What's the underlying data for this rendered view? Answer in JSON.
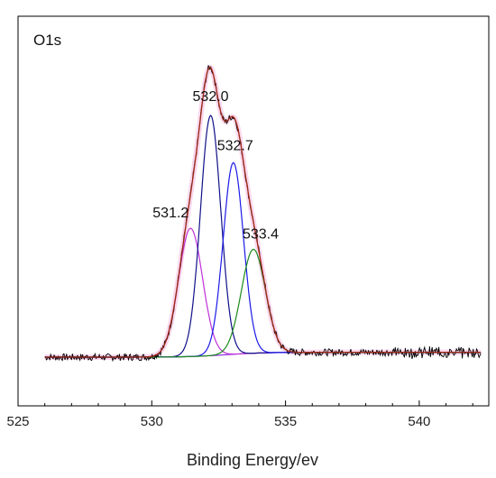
{
  "chart_data": {
    "type": "line",
    "panel_label": "O1s",
    "xlabel": "Binding Energy/ev",
    "ylabel": "",
    "xlim": [
      525,
      542.6
    ],
    "ylim": [
      -0.15,
      1.05
    ],
    "xticks": [
      525,
      530,
      535,
      540
    ],
    "grid": false,
    "series": [
      {
        "label": "531.2",
        "center": 531.45,
        "amplitude": 0.395,
        "sigma": 0.45,
        "color": "#c030d8"
      },
      {
        "label": "532.0",
        "center": 532.2,
        "amplitude": 0.74,
        "sigma": 0.38,
        "color": "#101088"
      },
      {
        "label": "532.7",
        "center": 533.05,
        "amplitude": 0.59,
        "sigma": 0.38,
        "color": "#1a1ae8"
      },
      {
        "label": "533.4",
        "center": 533.8,
        "amplitude": 0.32,
        "sigma": 0.45,
        "color": "#1a8a1a"
      }
    ],
    "background": {
      "color": "#8820d8"
    },
    "envelope": {
      "color": "#a02818"
    },
    "raw": {
      "color": "#000000"
    }
  }
}
